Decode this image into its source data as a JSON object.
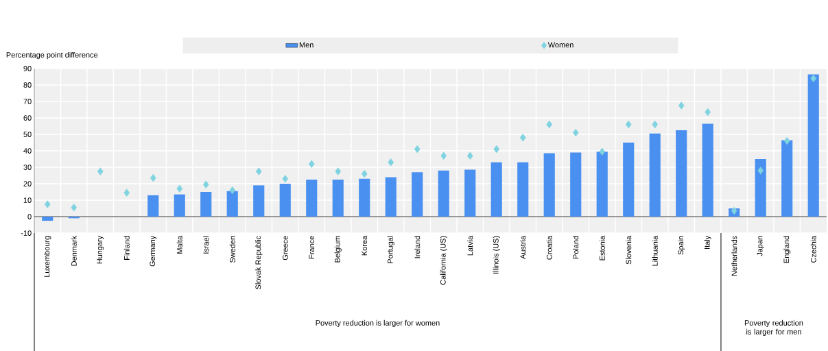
{
  "chart_data": {
    "type": "bar",
    "ylabel": "Percentage point difference",
    "categories": [
      "Luxembourg",
      "Denmark",
      "Hungary",
      "Finland",
      "Germany",
      "Malta",
      "Israel",
      "Sweden",
      "Slovak Republic",
      "Greece",
      "France",
      "Belgium",
      "Korea",
      "Portugal",
      "Ireland",
      "California (US)",
      "Latvia",
      "Illinois (US)",
      "Austria",
      "Croatia",
      "Poland",
      "Estonia",
      "Slovenia",
      "Lithuania",
      "Spain",
      "Italy",
      "Netherlands",
      "Japan",
      "England",
      "Czechia"
    ],
    "series": [
      {
        "name": "Men",
        "color": "#4a90f0",
        "values": [
          -2.5,
          -1,
          null,
          null,
          13,
          13.5,
          15,
          15.5,
          19,
          20,
          22.5,
          22.5,
          23,
          24,
          27,
          28,
          28.5,
          33,
          33,
          38.5,
          39,
          39.5,
          45,
          50.5,
          52.5,
          56.5,
          5,
          35,
          46.5,
          86.5
        ]
      },
      {
        "name": "Women",
        "type": "scatter",
        "marker": "diamond",
        "color": "#7fd3e0",
        "values": [
          7.5,
          5.5,
          27.5,
          14.5,
          23.5,
          17,
          19.5,
          16,
          27.5,
          23,
          32,
          27.5,
          26,
          33,
          41,
          37,
          37,
          41,
          48,
          56,
          51,
          39.5,
          56,
          56,
          67.5,
          63.5,
          3.5,
          28,
          46,
          84
        ]
      }
    ],
    "ylim": [
      -10,
      90
    ],
    "yticks": [
      -10,
      0,
      10,
      20,
      30,
      40,
      50,
      60,
      70,
      80,
      90
    ],
    "grid": true,
    "legend": "top",
    "annotations": [
      "Poverty reduction is larger for women",
      "Poverty reduction is larger for men"
    ]
  }
}
